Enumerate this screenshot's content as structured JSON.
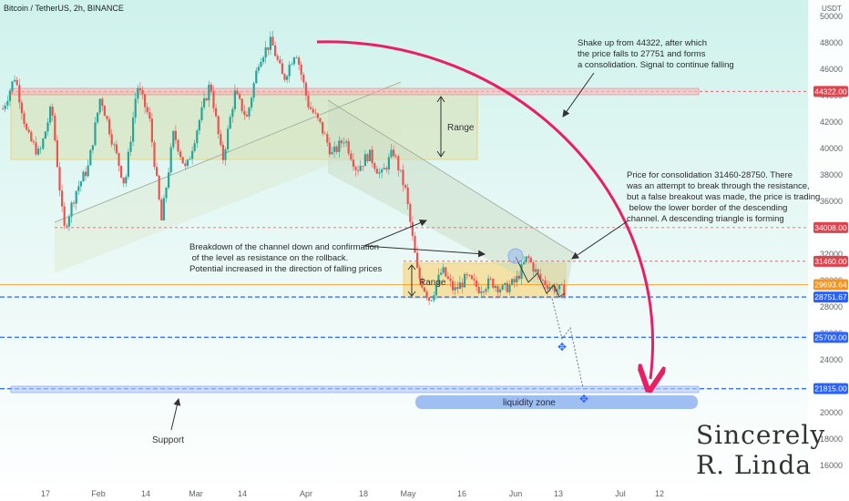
{
  "chart_data": {
    "type": "candlestick",
    "title": "Bitcoin / TetherUS, 2h, BINANCE",
    "quote_currency": "USDT",
    "y_ticks": [
      16000,
      18000,
      20000,
      22000,
      24000,
      26000,
      28000,
      30000,
      32000,
      34000,
      36000,
      38000,
      40000,
      42000,
      44000,
      46000,
      48000,
      50000
    ],
    "x_ticks": [
      "17",
      "Feb",
      "14",
      "Mar",
      "14",
      "Apr",
      "18",
      "May",
      "16",
      "Jun",
      "13",
      "Jul",
      "12"
    ],
    "price_path": [
      43000,
      45500,
      41000,
      39500,
      43200,
      33800,
      36800,
      38600,
      44000,
      40500,
      37200,
      44800,
      42300,
      34500,
      41200,
      38300,
      41800,
      45000,
      39000,
      44200,
      42300,
      46800,
      48100,
      45200,
      47500,
      43400,
      41800,
      39500,
      40800,
      38400,
      39600,
      37900,
      39800,
      36800,
      30500,
      28500,
      30800,
      29200,
      30200,
      29400,
      29900,
      29300,
      29900,
      31800,
      30100,
      29500,
      29200
    ],
    "levels": [
      {
        "price": 44322,
        "label": "44322.00",
        "color": "#e0424e"
      },
      {
        "price": 34008,
        "label": "34008.00",
        "color": "#e0424e"
      },
      {
        "price": 31460,
        "label": "31460.00",
        "color": "#e0424e"
      },
      {
        "price": 29693.64,
        "label": "29693.64",
        "color": "#f7941d"
      },
      {
        "price": 28751.67,
        "label": "28751.67",
        "color": "#2962ff"
      },
      {
        "price": 25700,
        "label": "25700.00",
        "color": "#2962ff"
      },
      {
        "price": 21815,
        "label": "21815.00",
        "color": "#2962ff"
      }
    ],
    "range_label": "Range",
    "liquidity_label": "liquidity zone",
    "support_label": "Support",
    "annotations": [
      "Shake up from 44322, after which\nthe price falls to 27751 and forms\na consolidation. Signal to continue falling",
      "Price for consolidation 31460-28750. There\nwas an attempt to break through the resistance,\nbut a false breakout was made, the price is trading\n below the lower border of the descending\nchannel. A descending triangle is forming",
      "Breakdown of the channel down and confirmation\n of the level as resistance on the rollback.\nPotential increased in the direction of falling prices"
    ],
    "signature": [
      "Sincerely",
      "R. Linda"
    ],
    "colors": {
      "up": "#26a69a",
      "down": "#ef5350",
      "arrow": "#e91e63",
      "range_fill": "#d9e6c3",
      "range_border": "#f2c94c"
    }
  }
}
